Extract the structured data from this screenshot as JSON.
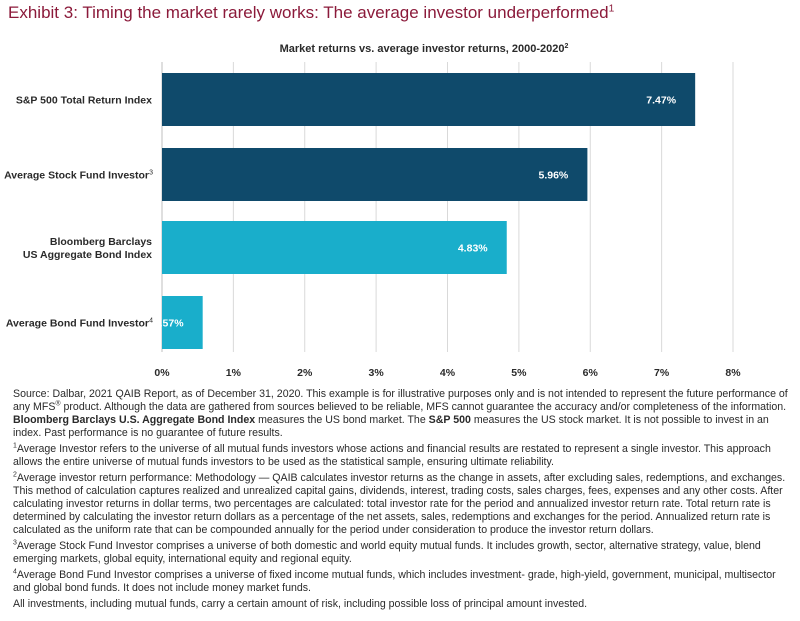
{
  "exhibit": {
    "title": "Exhibit 3: Timing the market rarely works: The average investor underperformed",
    "title_sup": "1"
  },
  "chart_data": {
    "type": "bar",
    "orientation": "horizontal",
    "title": "Market returns vs. average investor returns, 2000-2020",
    "title_sup": "2",
    "categories": [
      {
        "lines": [
          "S&P 500 Total Return Index"
        ],
        "sup": ""
      },
      {
        "lines": [
          "Average Stock Fund Investor"
        ],
        "sup": "3"
      },
      {
        "lines": [
          "Bloomberg Barclays",
          "US Aggregate Bond Index"
        ],
        "sup": ""
      },
      {
        "lines": [
          "Average Bond Fund Investor"
        ],
        "sup": "4"
      }
    ],
    "values": [
      7.47,
      5.96,
      4.83,
      0.57
    ],
    "value_labels": [
      "7.47%",
      "5.96%",
      "4.83%",
      "0.57%"
    ],
    "bar_colors": [
      "#0f4a6b",
      "#0f4a6b",
      "#19aecb",
      "#19aecb"
    ],
    "xlim": [
      0,
      8
    ],
    "xticks": [
      0,
      1,
      2,
      3,
      4,
      5,
      6,
      7,
      8
    ],
    "xtick_labels": [
      "0%",
      "1%",
      "2%",
      "3%",
      "4%",
      "5%",
      "6%",
      "7%",
      "8%"
    ],
    "grid": true,
    "legend": "none"
  },
  "notes": {
    "source": [
      {
        "t": "Source: Dalbar, 2021 QAIB Report, as of December 31, 2020. This example is for illustrative purposes only and is not intended to represent the future performance of any MFS"
      },
      {
        "t": "®",
        "sup": true
      },
      {
        "t": " product. Although the data are gathered from sources believed to be reliable, MFS cannot guarantee the accuracy and/or completeness of the information. "
      },
      {
        "t": "Bloomberg Barclays U.S. Aggregate Bond Index",
        "bold": true
      },
      {
        "t": " measures the US bond market. The "
      },
      {
        "t": "S&P 500",
        "bold": true
      },
      {
        "t": " measures the US stock market. It is not possible to invest in an index. Past performance is no guarantee of future results."
      }
    ],
    "fn1_mark": "1",
    "fn1": "Average Investor refers to the universe of all mutual funds investors whose actions and financial results are restated to represent a single investor. This approach allows the entire universe of mutual funds investors to be used as the statistical sample, ensuring ultimate reliability.",
    "fn2_mark": "2",
    "fn2": "Average investor return performance: Methodology — QAIB calculates investor returns as the change in assets, after excluding sales, redemptions, and exchanges. This method of calculation captures realized and unrealized capital gains, dividends, interest, trading costs, sales charges, fees, expenses and any other costs. After calculating investor returns in dollar terms, two percentages are calculated: total investor rate for the period and annualized investor return rate. Total return rate is determined by calculating the investor return dollars as a percentage of the net assets, sales, redemptions and exchanges for the period. Annualized return rate is calculated as the uniform rate that can be compounded annually for the period under consideration to produce the investor return dollars.",
    "fn3_mark": "3",
    "fn3": "Average Stock Fund Investor comprises a universe of both domestic and world equity mutual funds. It includes growth, sector, alternative strategy, value, blend emerging markets, global equity, international equity and regional equity.",
    "fn4_mark": "4",
    "fn4": "Average Bond Fund Investor comprises a universe of fixed income mutual funds, which includes investment- grade, high-yield, government, municipal, multisector and global bond funds. It does not include money market funds.",
    "closing": "All investments, including mutual funds, carry a certain amount of risk, including possible loss of principal amount invested."
  }
}
